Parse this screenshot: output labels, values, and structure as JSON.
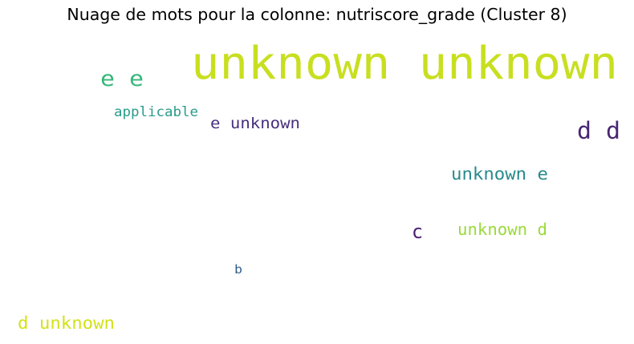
{
  "chart_data": {
    "type": "wordcloud",
    "title": "Nuage de mots pour la colonne: nutriscore_grade (Cluster 8)",
    "words": [
      {
        "text": "unknown unknown",
        "color": "#c8df20"
      },
      {
        "text": "e e",
        "color": "#35b779"
      },
      {
        "text": "applicable",
        "color": "#2a9b8a"
      },
      {
        "text": "e unknown",
        "color": "#472f7d"
      },
      {
        "text": "d d",
        "color": "#482575"
      },
      {
        "text": "unknown e",
        "color": "#2a8a8c"
      },
      {
        "text": "c",
        "color": "#481d6f"
      },
      {
        "text": "unknown d",
        "color": "#9bd93c"
      },
      {
        "text": "b",
        "color": "#34608d"
      },
      {
        "text": "d unknown",
        "color": "#d2e21b"
      }
    ]
  }
}
